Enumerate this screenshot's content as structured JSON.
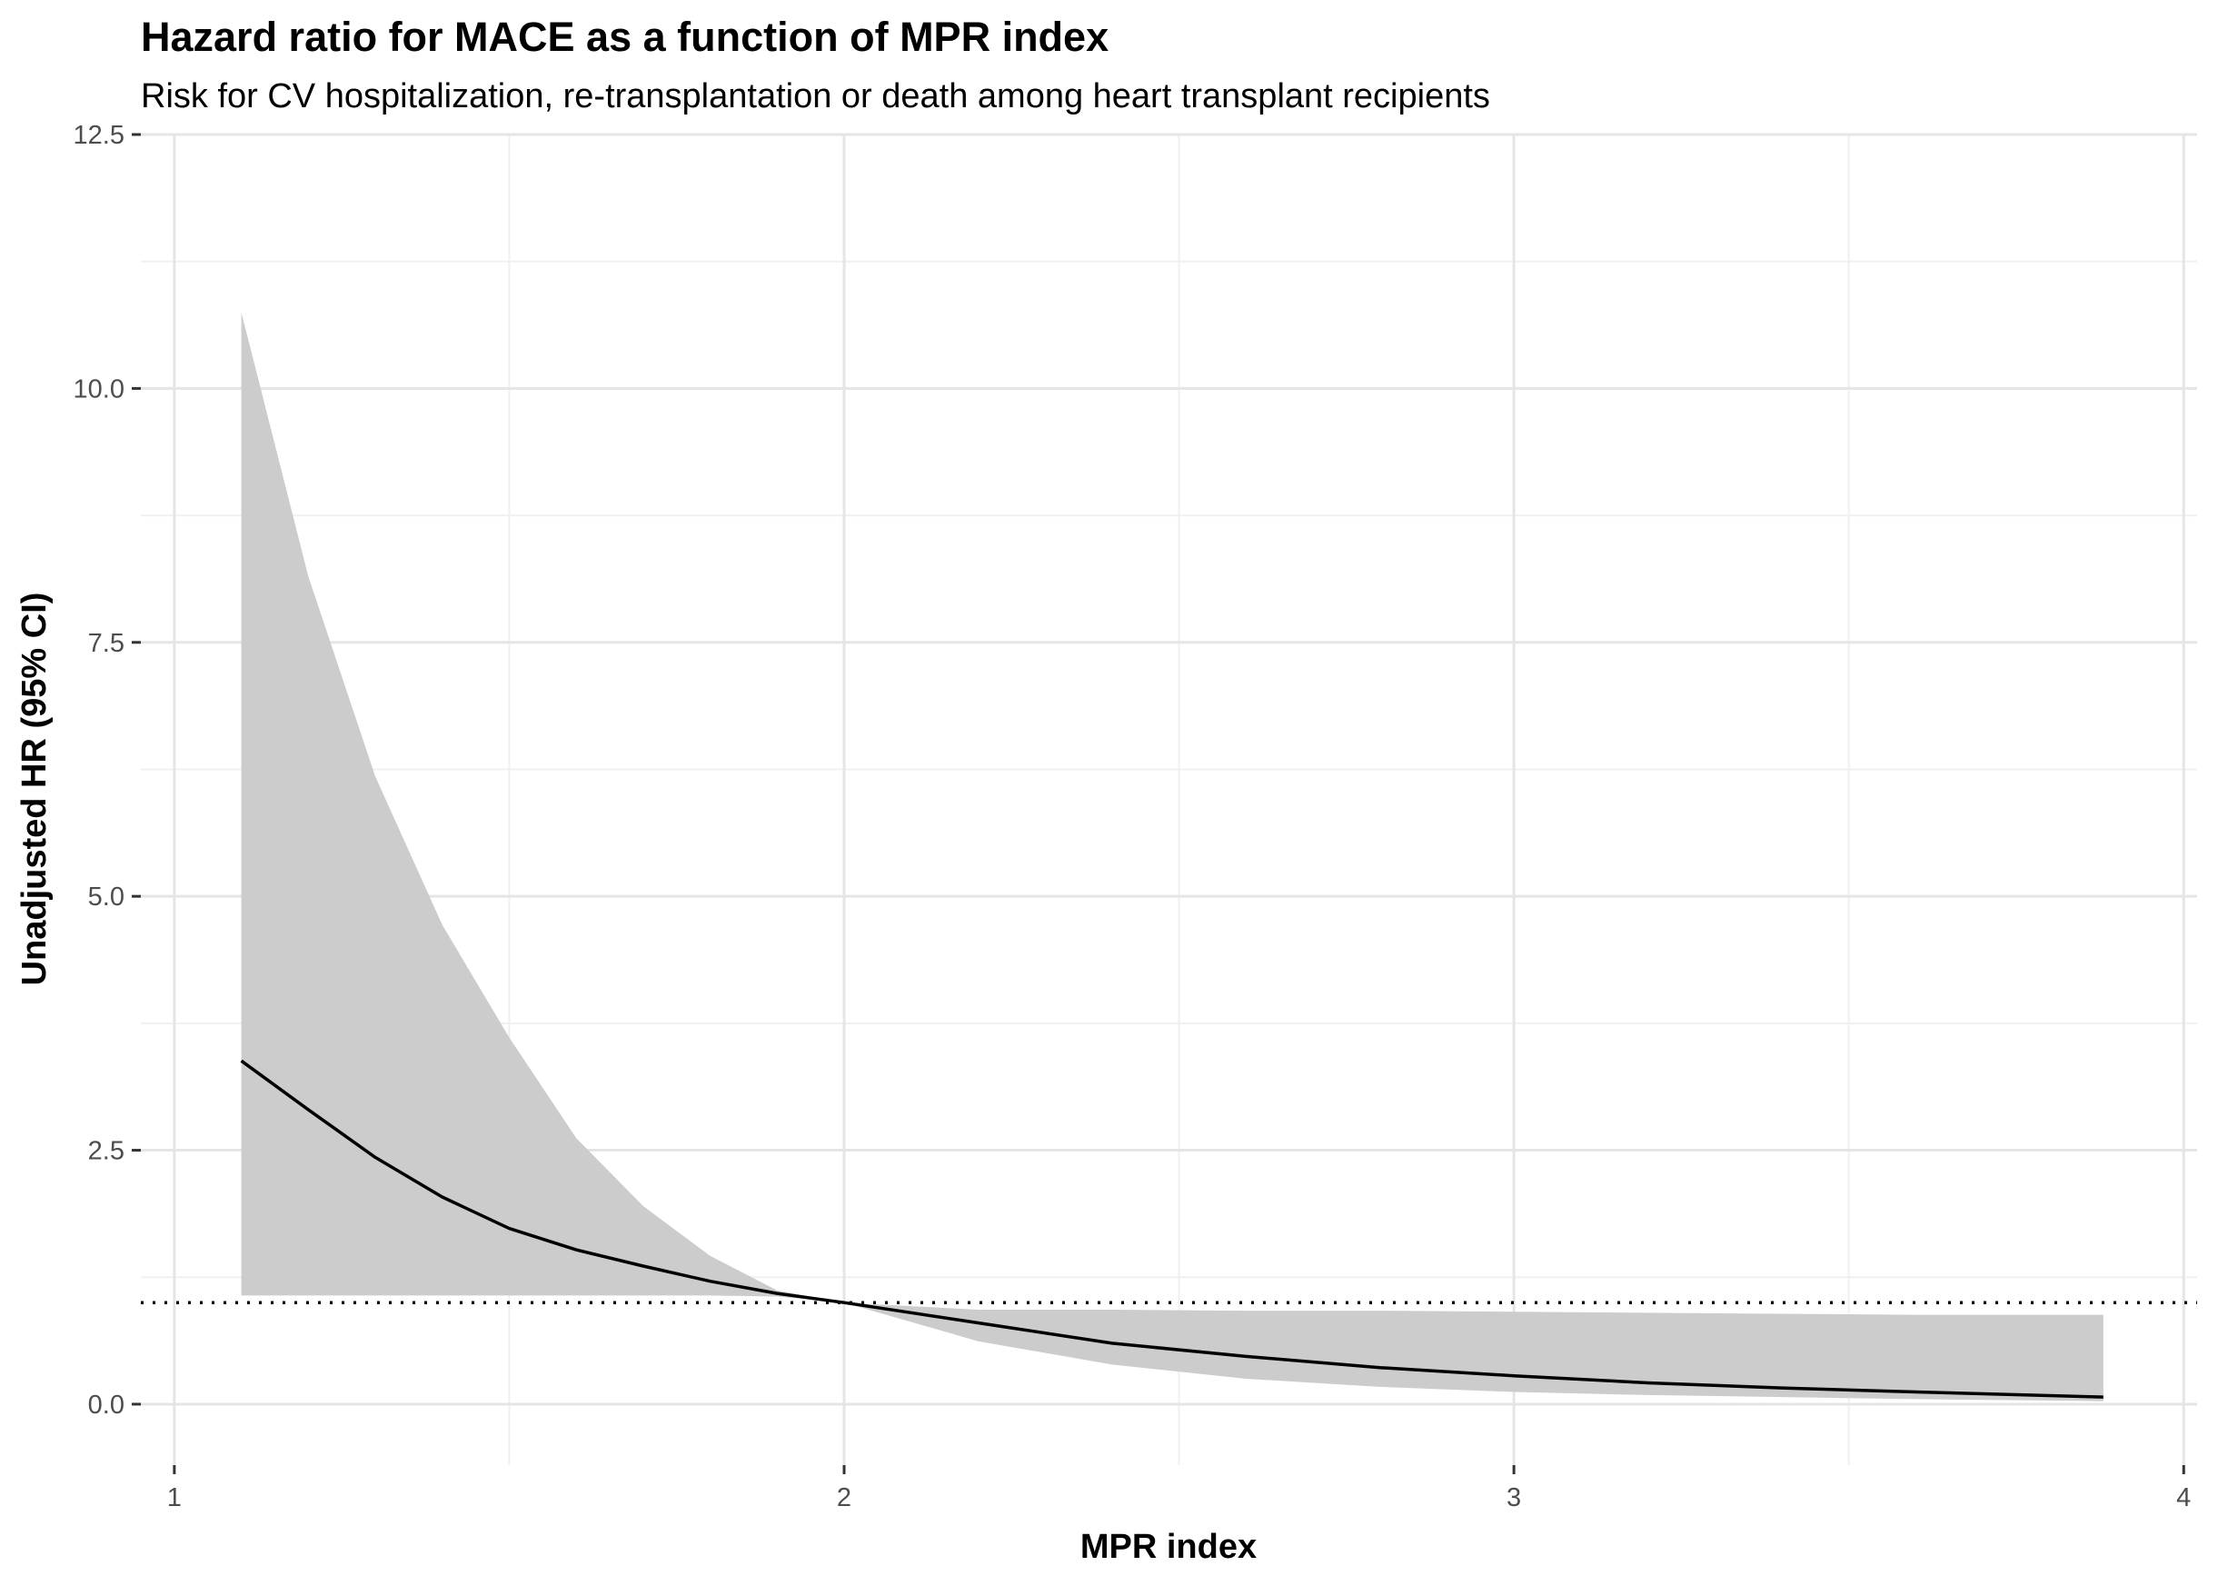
{
  "chart_data": {
    "type": "line",
    "title": "Hazard ratio for MACE as a function of MPR index",
    "subtitle": "Risk for CV hospitalization, re-transplantation or death among heart transplant recipients",
    "xlabel": "MPR index",
    "ylabel": "Unadjusted HR (95% CI)",
    "xlim": [
      0.95,
      4.02
    ],
    "ylim": [
      -0.6,
      12.5
    ],
    "x_ticks": [
      1,
      2,
      3,
      4
    ],
    "x_tick_labels": [
      "1",
      "2",
      "3",
      "4"
    ],
    "x_minor_ticks": [
      1.5,
      2.5,
      3.5
    ],
    "y_ticks": [
      0,
      2.5,
      5,
      7.5,
      10,
      12.5
    ],
    "y_tick_labels": [
      "0.0",
      "2.5",
      "5.0",
      "7.5",
      "10.0",
      "12.5"
    ],
    "y_minor_ticks": [
      1.25,
      3.75,
      6.25,
      8.75,
      11.25
    ],
    "grid": true,
    "reference_line": {
      "y": 1,
      "style": "dotted",
      "color": "#000000"
    },
    "series": [
      {
        "x": [
          1.1,
          1.2,
          1.3,
          1.4,
          1.5,
          1.6,
          1.7,
          1.8,
          1.9,
          2.0,
          2.2,
          2.4,
          2.6,
          2.8,
          3.0,
          3.2,
          3.4,
          3.6,
          3.88
        ],
        "y": [
          3.38,
          2.9,
          2.43,
          2.04,
          1.73,
          1.52,
          1.36,
          1.21,
          1.09,
          1.0,
          0.8,
          0.6,
          0.47,
          0.36,
          0.28,
          0.21,
          0.16,
          0.12,
          0.07
        ],
        "lower": [
          1.07,
          1.07,
          1.07,
          1.07,
          1.07,
          1.07,
          1.07,
          1.07,
          1.06,
          1.0,
          0.62,
          0.39,
          0.25,
          0.17,
          0.12,
          0.09,
          0.07,
          0.05,
          0.03
        ],
        "upper": [
          10.75,
          8.15,
          6.18,
          4.72,
          3.61,
          2.62,
          1.95,
          1.46,
          1.12,
          1.0,
          0.93,
          0.93,
          0.92,
          0.92,
          0.91,
          0.9,
          0.89,
          0.88,
          0.88
        ],
        "line_color": "#000000",
        "ribbon_color": "#cccccc"
      }
    ]
  }
}
